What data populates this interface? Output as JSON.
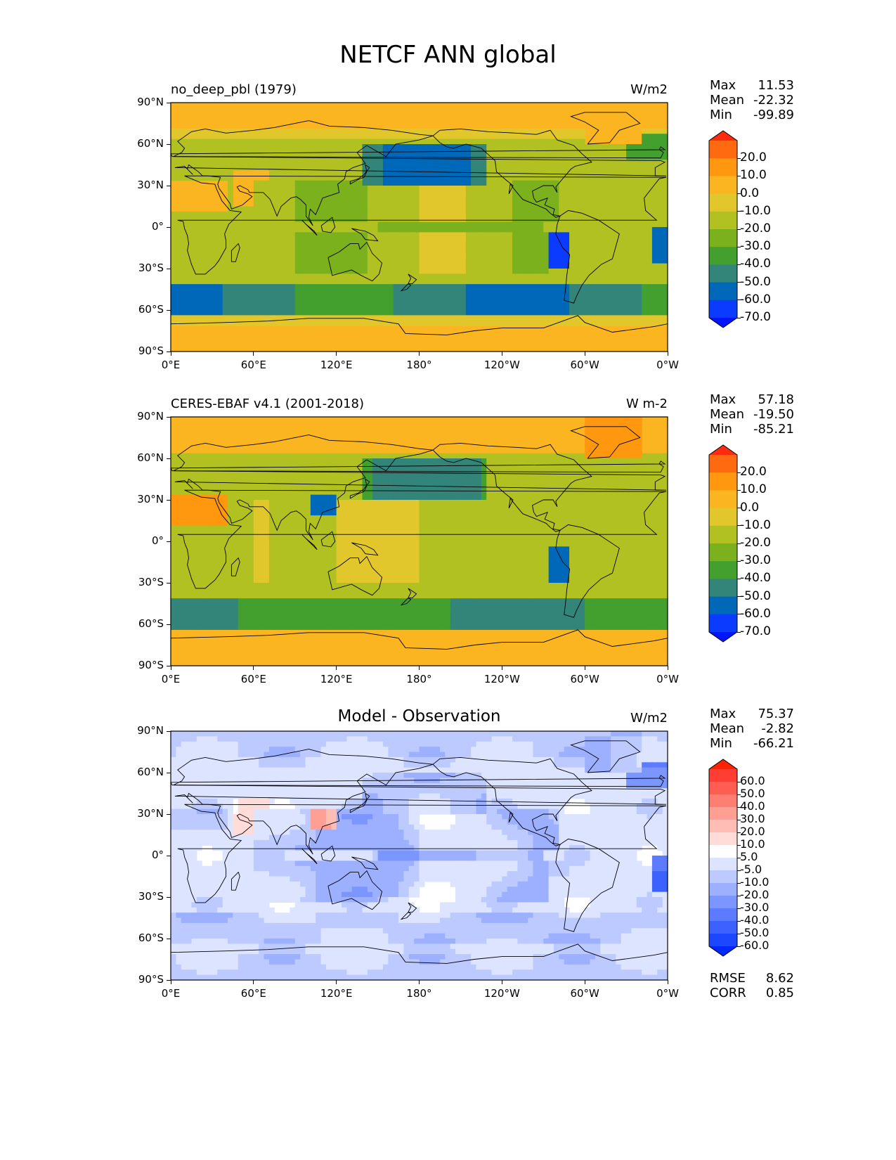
{
  "title": "NETCF ANN global",
  "x_ticks": [
    "0°E",
    "60°E",
    "120°E",
    "180°",
    "120°W",
    "60°W",
    "0°W"
  ],
  "y_ticks": [
    "90°N",
    "60°N",
    "30°N",
    "0°",
    "30°S",
    "60°S",
    "90°S"
  ],
  "panels": [
    {
      "title_left": "no_deep_pbl (1979)",
      "title_center": "",
      "title_right": "W/m2",
      "stats": [
        {
          "label": "Max",
          "value": "11.53"
        },
        {
          "label": "Mean",
          "value": "-22.32"
        },
        {
          "label": "Min",
          "value": "-99.89"
        }
      ],
      "colorbar": {
        "labels": [
          "20.0",
          "10.0",
          "0.0",
          "-10.0",
          "-20.0",
          "-30.0",
          "-40.0",
          "-50.0",
          "-60.0",
          "-70.0"
        ],
        "colors": [
          "#ff2b0e",
          "#ff6a10",
          "#ff980f",
          "#fbb520",
          "#e2c72c",
          "#b2c122",
          "#7ab11d",
          "#44a02e",
          "#33857a",
          "#0068b8",
          "#0a3bff",
          "#0015ff"
        ]
      }
    },
    {
      "title_left": "CERES-EBAF v4.1 (2001-2018)",
      "title_center": "",
      "title_right": "W m-2",
      "stats": [
        {
          "label": "Max",
          "value": "57.18"
        },
        {
          "label": "Mean",
          "value": "-19.50"
        },
        {
          "label": "Min",
          "value": "-85.21"
        }
      ],
      "colorbar": {
        "labels": [
          "20.0",
          "10.0",
          "0.0",
          "-10.0",
          "-20.0",
          "-30.0",
          "-40.0",
          "-50.0",
          "-60.0",
          "-70.0"
        ],
        "colors": [
          "#ff2b0e",
          "#ff6a10",
          "#ff980f",
          "#fbb520",
          "#e2c72c",
          "#b2c122",
          "#7ab11d",
          "#44a02e",
          "#33857a",
          "#0068b8",
          "#0a3bff",
          "#0015ff"
        ]
      }
    },
    {
      "title_left": "",
      "title_center": "Model - Observation",
      "title_right": "W/m2",
      "stats": [
        {
          "label": "Max",
          "value": "75.37"
        },
        {
          "label": "Mean",
          "value": "-2.82"
        },
        {
          "label": "Min",
          "value": "-66.21"
        }
      ],
      "colorbar": {
        "labels": [
          "60.0",
          "50.0",
          "40.0",
          "30.0",
          "20.0",
          "10.0",
          "5.0",
          "-5.0",
          "-10.0",
          "-20.0",
          "-30.0",
          "-40.0",
          "-50.0",
          "-60.0"
        ],
        "colors": [
          "#ff2200",
          "#ff3d33",
          "#ff5d52",
          "#ff7e72",
          "#ff9e93",
          "#ffbdb5",
          "#ffdcd8",
          "#ffffff",
          "#dce4ff",
          "#bccaff",
          "#9cb0ff",
          "#7c96ff",
          "#5c7bff",
          "#3c61ff",
          "#1c47ff",
          "#0029ff"
        ]
      },
      "metrics": [
        {
          "label": "RMSE",
          "value": "8.62"
        },
        {
          "label": "CORR",
          "value": "0.85"
        }
      ]
    }
  ]
}
